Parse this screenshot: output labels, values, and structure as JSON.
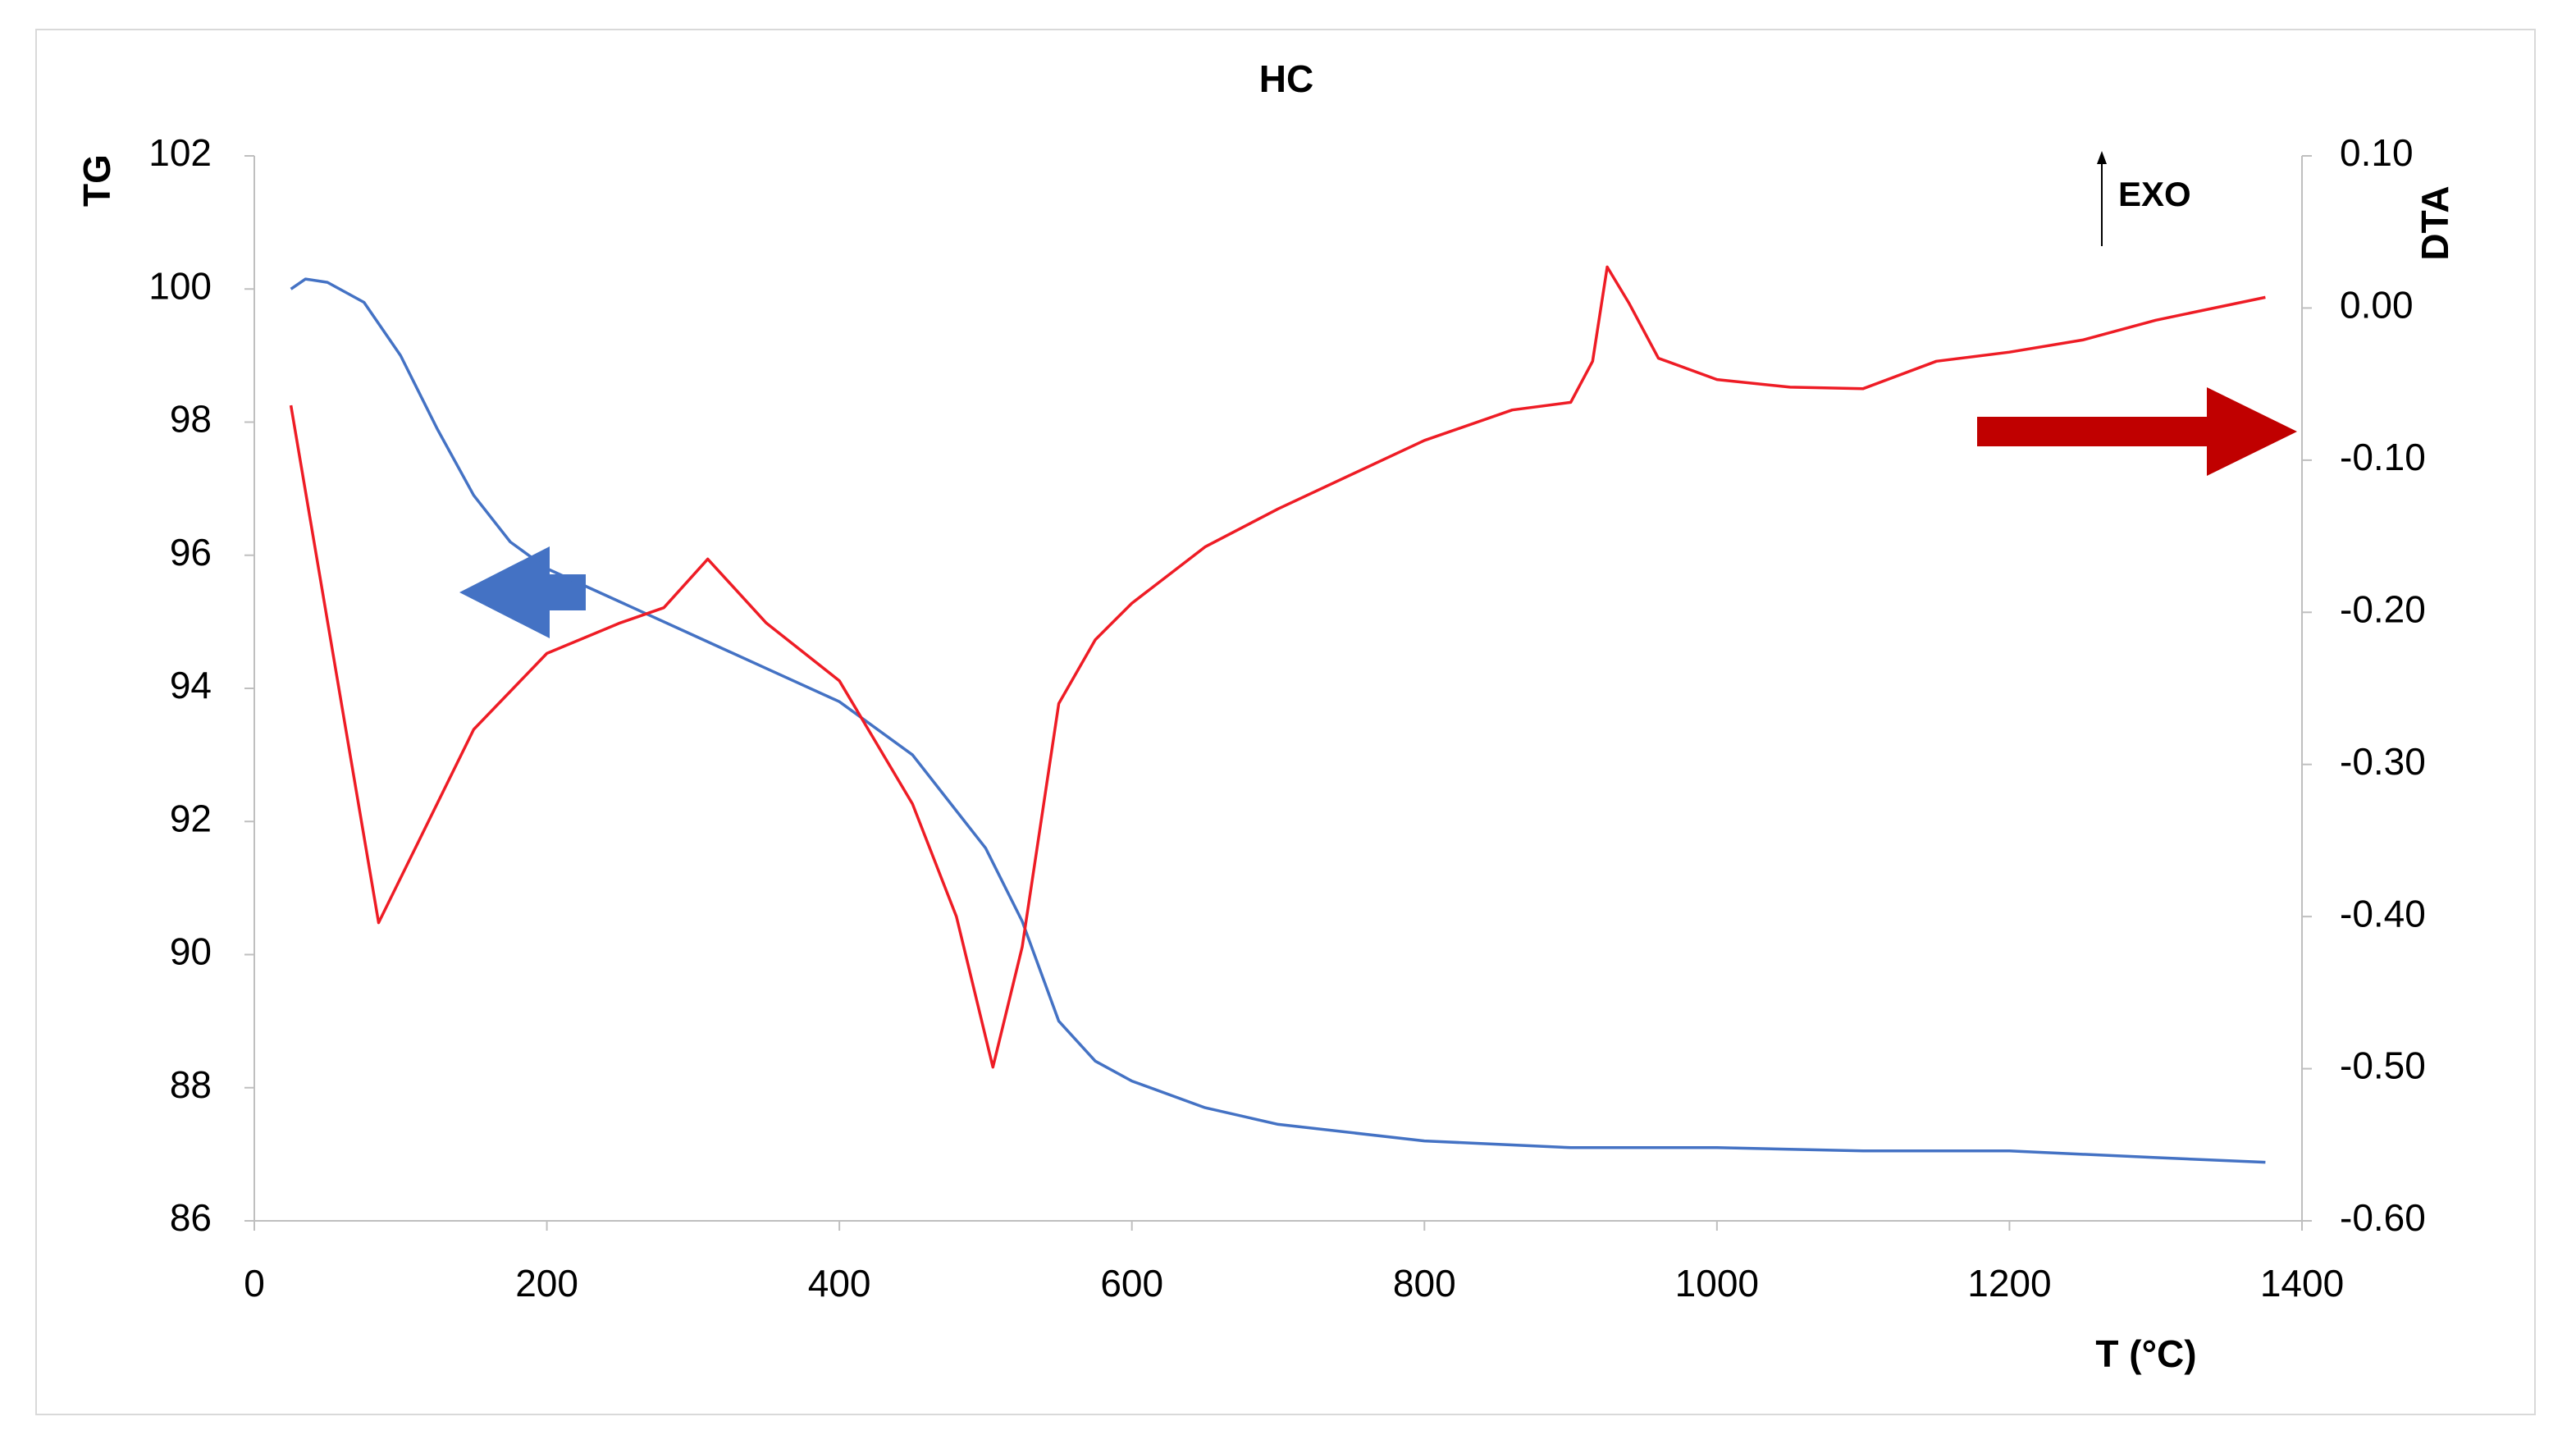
{
  "chart_data": {
    "type": "line",
    "title": "HC",
    "x_label": "T (°C)",
    "y_label": "TG",
    "y2_label": "DTA",
    "annotation": "EXO",
    "xlim": [
      0,
      1400
    ],
    "xticks": [
      0,
      200,
      400,
      600,
      800,
      1000,
      1200,
      1400
    ],
    "ylim": [
      86,
      102
    ],
    "yticks": [
      86,
      88,
      90,
      92,
      94,
      96,
      98,
      100,
      102
    ],
    "y2lim": [
      -0.6,
      0.1
    ],
    "y2ticks": [
      {
        "value": -0.6,
        "label": "-0.60"
      },
      {
        "value": -0.5,
        "label": "-0.50"
      },
      {
        "value": -0.4,
        "label": "-0.40"
      },
      {
        "value": -0.3,
        "label": "-0.30"
      },
      {
        "value": -0.2,
        "label": "-0.20"
      },
      {
        "value": -0.1,
        "label": "-0.10"
      },
      {
        "value": 0,
        "label": "0.00"
      },
      {
        "value": 0.1,
        "label": "0.10"
      }
    ],
    "grid": false,
    "series": [
      {
        "name": "TG",
        "color": "#4472c4",
        "x": [
          25,
          35,
          50,
          75,
          100,
          125,
          150,
          175,
          200,
          250,
          300,
          350,
          400,
          450,
          500,
          525,
          550,
          575,
          600,
          650,
          700,
          800,
          900,
          1000,
          1100,
          1200,
          1300,
          1375
        ],
        "values": [
          100.0,
          100.15,
          100.1,
          99.8,
          99.0,
          97.9,
          96.9,
          96.2,
          95.8,
          95.3,
          94.8,
          94.3,
          93.8,
          93.0,
          91.6,
          90.5,
          89.0,
          88.4,
          88.1,
          87.7,
          87.45,
          87.2,
          87.1,
          87.1,
          87.05,
          87.05,
          86.95,
          86.88
        ]
      },
      {
        "name": "DTA",
        "color": "#ee1c25",
        "axis": "y2",
        "x": [
          25,
          85,
          150,
          200,
          250,
          280,
          310,
          350,
          400,
          450,
          480,
          505,
          525,
          550,
          575,
          600,
          650,
          700,
          800,
          860,
          900,
          915,
          925,
          940,
          960,
          1000,
          1050,
          1100,
          1150,
          1200,
          1250,
          1300,
          1375
        ],
        "values": [
          -0.064,
          -0.404,
          -0.277,
          -0.227,
          -0.207,
          -0.197,
          -0.165,
          -0.207,
          -0.245,
          -0.326,
          -0.4,
          -0.499,
          -0.42,
          -0.26,
          -0.218,
          -0.194,
          -0.157,
          -0.132,
          -0.087,
          -0.067,
          -0.062,
          -0.035,
          0.027,
          0.003,
          -0.033,
          -0.047,
          -0.052,
          -0.053,
          -0.035,
          -0.029,
          -0.021,
          -0.008,
          0.007
        ]
      }
    ]
  }
}
